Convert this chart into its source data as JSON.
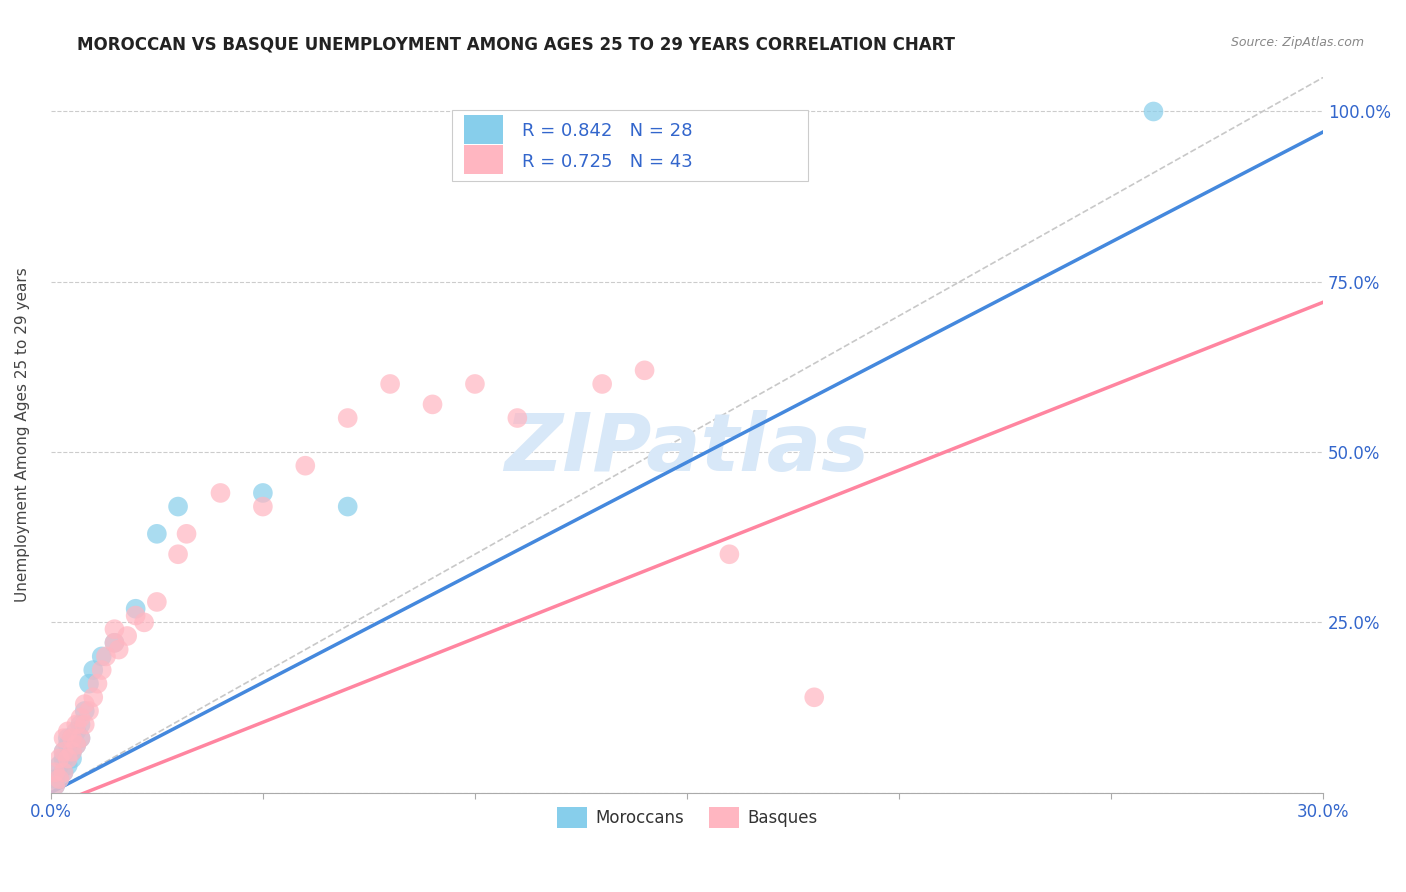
{
  "title": "MOROCCAN VS BASQUE UNEMPLOYMENT AMONG AGES 25 TO 29 YEARS CORRELATION CHART",
  "source": "Source: ZipAtlas.com",
  "ylabel": "Unemployment Among Ages 25 to 29 years",
  "xlim": [
    0,
    0.3
  ],
  "ylim": [
    0,
    1.05
  ],
  "xticks": [
    0.0,
    0.05,
    0.1,
    0.15,
    0.2,
    0.25,
    0.3
  ],
  "xtick_labels": [
    "0.0%",
    "",
    "",
    "",
    "",
    "",
    "30.0%"
  ],
  "yticks": [
    0.0,
    0.25,
    0.5,
    0.75,
    1.0
  ],
  "ytick_labels": [
    "",
    "25.0%",
    "50.0%",
    "75.0%",
    "100.0%"
  ],
  "moroccan_R": 0.842,
  "moroccan_N": 28,
  "basque_R": 0.725,
  "basque_N": 43,
  "moroccan_color": "#87CEEB",
  "basque_color": "#FFB6C1",
  "moroccan_line_color": "#4488DD",
  "basque_line_color": "#FF85A0",
  "diagonal_color": "#C8C8C8",
  "watermark_text": "ZIPatlas",
  "watermark_color": "#D8E8F8",
  "legend_label_moroccan": "Moroccans",
  "legend_label_basque": "Basques",
  "blue_text_color": "#3366CC",
  "moroccan_x": [
    0.001,
    0.001,
    0.002,
    0.002,
    0.003,
    0.003,
    0.003,
    0.004,
    0.004,
    0.004,
    0.005,
    0.005,
    0.005,
    0.006,
    0.006,
    0.007,
    0.007,
    0.008,
    0.009,
    0.01,
    0.012,
    0.015,
    0.02,
    0.025,
    0.03,
    0.05,
    0.07,
    0.26
  ],
  "moroccan_y": [
    0.01,
    0.02,
    0.02,
    0.04,
    0.03,
    0.05,
    0.06,
    0.04,
    0.07,
    0.08,
    0.05,
    0.06,
    0.08,
    0.07,
    0.09,
    0.08,
    0.1,
    0.12,
    0.16,
    0.18,
    0.2,
    0.22,
    0.27,
    0.38,
    0.42,
    0.44,
    0.42,
    1.0
  ],
  "basque_x": [
    0.001,
    0.001,
    0.002,
    0.002,
    0.003,
    0.003,
    0.003,
    0.004,
    0.004,
    0.005,
    0.005,
    0.006,
    0.006,
    0.007,
    0.007,
    0.008,
    0.008,
    0.009,
    0.01,
    0.011,
    0.012,
    0.013,
    0.015,
    0.015,
    0.016,
    0.018,
    0.02,
    0.022,
    0.025,
    0.03,
    0.032,
    0.04,
    0.05,
    0.06,
    0.07,
    0.08,
    0.09,
    0.1,
    0.11,
    0.13,
    0.14,
    0.16,
    0.18
  ],
  "basque_y": [
    0.01,
    0.03,
    0.02,
    0.05,
    0.03,
    0.06,
    0.08,
    0.05,
    0.09,
    0.06,
    0.08,
    0.07,
    0.1,
    0.08,
    0.11,
    0.1,
    0.13,
    0.12,
    0.14,
    0.16,
    0.18,
    0.2,
    0.22,
    0.24,
    0.21,
    0.23,
    0.26,
    0.25,
    0.28,
    0.35,
    0.38,
    0.44,
    0.42,
    0.48,
    0.55,
    0.6,
    0.57,
    0.6,
    0.55,
    0.6,
    0.62,
    0.35,
    0.14
  ],
  "moroccan_line_x": [
    0.0,
    0.3
  ],
  "moroccan_line_y": [
    0.0,
    0.97
  ],
  "basque_line_x": [
    0.0,
    0.3
  ],
  "basque_line_y": [
    -0.02,
    0.72
  ]
}
